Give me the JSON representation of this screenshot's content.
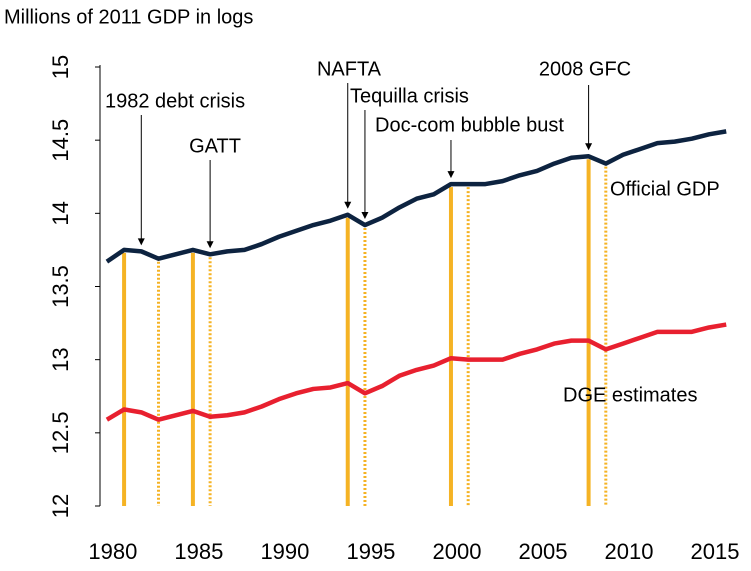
{
  "chart_data": {
    "type": "line",
    "y_axis_title": "Millions of 2011 GDP in logs",
    "x": [
      1980,
      1981,
      1982,
      1983,
      1984,
      1985,
      1986,
      1987,
      1988,
      1989,
      1990,
      1991,
      1992,
      1993,
      1994,
      1995,
      1996,
      1997,
      1998,
      1999,
      2000,
      2001,
      2002,
      2003,
      2004,
      2005,
      2006,
      2007,
      2008,
      2009,
      2010,
      2011,
      2012,
      2013,
      2014,
      2015,
      2016
    ],
    "series": [
      {
        "name": "Official GDP",
        "color": "#0d2340",
        "values": [
          13.67,
          13.75,
          13.74,
          13.69,
          13.72,
          13.75,
          13.72,
          13.74,
          13.75,
          13.79,
          13.84,
          13.88,
          13.92,
          13.95,
          13.99,
          13.92,
          13.97,
          14.04,
          14.1,
          14.13,
          14.2,
          14.2,
          14.2,
          14.22,
          14.26,
          14.29,
          14.34,
          14.38,
          14.39,
          14.34,
          14.4,
          14.44,
          14.48,
          14.49,
          14.51,
          14.54,
          14.56
        ]
      },
      {
        "name": "DGE estimates",
        "color": "#e8202f",
        "values": [
          12.59,
          12.66,
          12.64,
          12.59,
          12.62,
          12.65,
          12.61,
          12.62,
          12.64,
          12.68,
          12.73,
          12.77,
          12.8,
          12.81,
          12.84,
          12.77,
          12.82,
          12.89,
          12.93,
          12.96,
          13.01,
          13.0,
          13.0,
          13.0,
          13.04,
          13.07,
          13.11,
          13.13,
          13.13,
          13.07,
          13.11,
          13.15,
          13.19,
          13.19,
          13.19,
          13.22,
          13.24
        ]
      }
    ],
    "event_lines": [
      {
        "x": 1981,
        "style": "solid"
      },
      {
        "x": 1983,
        "style": "dashed"
      },
      {
        "x": 1985,
        "style": "solid"
      },
      {
        "x": 1986,
        "style": "dashed"
      },
      {
        "x": 1994,
        "style": "solid"
      },
      {
        "x": 1995,
        "style": "dashed"
      },
      {
        "x": 2000,
        "style": "solid"
      },
      {
        "x": 2001,
        "style": "dashed"
      },
      {
        "x": 2008,
        "style": "solid"
      },
      {
        "x": 2009,
        "style": "dashed"
      }
    ],
    "event_color": "#f5b324",
    "annotations": [
      {
        "text": "1982 debt crisis",
        "x": 1982
      },
      {
        "text": "GATT",
        "x": 1986
      },
      {
        "text": "NAFTA",
        "x": 1994
      },
      {
        "text": "Tequilla crisis",
        "x": 1995
      },
      {
        "text": "Doc-com bubble bust",
        "x": 2000
      },
      {
        "text": "2008 GFC",
        "x": 2008
      }
    ],
    "xlim": [
      1979.6,
      2016.8
    ],
    "xticks": [
      1980,
      1985,
      1990,
      1995,
      2000,
      2005,
      2010,
      2015
    ],
    "ylim": [
      12,
      15
    ],
    "yticks": [
      12,
      12.5,
      13,
      13.5,
      14,
      14.5,
      15
    ]
  }
}
